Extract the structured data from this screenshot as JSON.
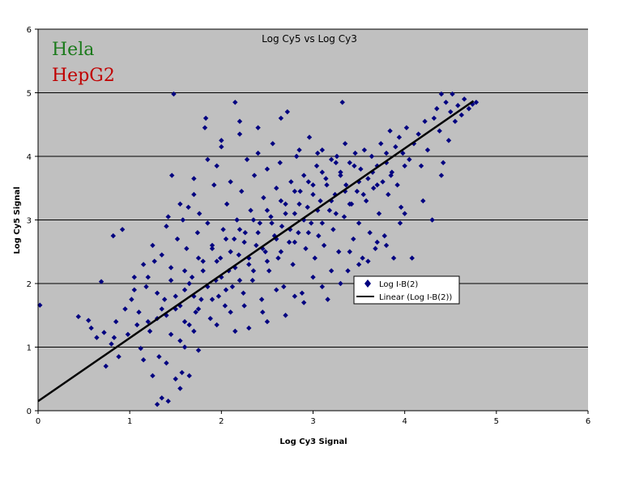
{
  "chart_data": {
    "type": "scatter",
    "title": "Log Cy5 vs Log Cy3",
    "xlabel": "Log Cy3 Signal",
    "ylabel": "Log Cy5 Signal",
    "xlim": [
      0,
      6
    ],
    "ylim": [
      0,
      6
    ],
    "xticks": [
      "0",
      "1",
      "2",
      "3",
      "4",
      "5",
      "6"
    ],
    "yticks": [
      "0",
      "1",
      "2",
      "3",
      "4",
      "5",
      "6"
    ],
    "grid": "horizontal",
    "legend_position": "right",
    "annotations": [
      {
        "text": "Hela",
        "color": "#1a7a1a"
      },
      {
        "text": "HepG2",
        "color": "#c00000"
      }
    ],
    "series": [
      {
        "name": "Log I-B(2)",
        "marker": "diamond",
        "color": "#000080",
        "points": [
          [
            0.02,
            1.66
          ],
          [
            0.44,
            1.48
          ],
          [
            0.55,
            1.42
          ],
          [
            0.58,
            1.3
          ],
          [
            0.64,
            1.15
          ],
          [
            0.69,
            2.03
          ],
          [
            0.72,
            1.23
          ],
          [
            0.74,
            0.7
          ],
          [
            0.8,
            1.05
          ],
          [
            0.83,
            1.15
          ],
          [
            0.85,
            1.4
          ],
          [
            0.88,
            0.85
          ],
          [
            0.82,
            2.75
          ],
          [
            0.92,
            2.85
          ],
          [
            0.95,
            1.6
          ],
          [
            0.98,
            1.2
          ],
          [
            1.02,
            1.75
          ],
          [
            1.05,
            1.9
          ],
          [
            1.08,
            1.35
          ],
          [
            1.1,
            1.55
          ],
          [
            1.12,
            0.98
          ],
          [
            1.15,
            0.8
          ],
          [
            1.18,
            1.95
          ],
          [
            1.2,
            2.1
          ],
          [
            1.22,
            1.25
          ],
          [
            1.25,
            0.55
          ],
          [
            1.27,
            2.35
          ],
          [
            1.3,
            1.45
          ],
          [
            1.32,
            0.85
          ],
          [
            1.35,
            2.45
          ],
          [
            1.38,
            1.75
          ],
          [
            1.4,
            0.75
          ],
          [
            1.42,
            3.05
          ],
          [
            1.45,
            2.25
          ],
          [
            1.46,
            3.7
          ],
          [
            1.48,
            4.98
          ],
          [
            1.5,
            1.6
          ],
          [
            1.52,
            2.7
          ],
          [
            1.55,
            1.1
          ],
          [
            1.57,
            0.6
          ],
          [
            1.58,
            3.0
          ],
          [
            1.6,
            1.9
          ],
          [
            1.62,
            2.55
          ],
          [
            1.64,
            3.2
          ],
          [
            1.65,
            1.35
          ],
          [
            1.68,
            2.1
          ],
          [
            1.7,
            3.4
          ],
          [
            1.72,
            1.55
          ],
          [
            1.74,
            2.8
          ],
          [
            1.76,
            3.1
          ],
          [
            1.78,
            1.75
          ],
          [
            1.8,
            2.35
          ],
          [
            1.82,
            4.45
          ],
          [
            1.83,
            4.6
          ],
          [
            1.85,
            2.95
          ],
          [
            1.88,
            1.45
          ],
          [
            1.9,
            2.6
          ],
          [
            1.92,
            3.55
          ],
          [
            1.94,
            2.05
          ],
          [
            1.95,
            3.85
          ],
          [
            1.97,
            1.8
          ],
          [
            1.99,
            2.4
          ],
          [
            2.0,
            4.15
          ],
          [
            2.02,
            2.85
          ],
          [
            2.04,
            1.65
          ],
          [
            2.06,
            3.25
          ],
          [
            2.08,
            2.2
          ],
          [
            2.1,
            3.6
          ],
          [
            2.12,
            1.95
          ],
          [
            2.14,
            2.7
          ],
          [
            2.15,
            4.85
          ],
          [
            2.17,
            3.0
          ],
          [
            2.19,
            2.45
          ],
          [
            2.2,
            4.55
          ],
          [
            2.22,
            3.45
          ],
          [
            2.24,
            1.85
          ],
          [
            2.26,
            2.8
          ],
          [
            2.28,
            3.95
          ],
          [
            2.3,
            2.3
          ],
          [
            2.32,
            3.15
          ],
          [
            2.34,
            2.05
          ],
          [
            2.36,
            3.7
          ],
          [
            2.38,
            2.6
          ],
          [
            2.4,
            4.05
          ],
          [
            2.42,
            2.95
          ],
          [
            2.44,
            1.75
          ],
          [
            2.46,
            3.35
          ],
          [
            2.48,
            2.5
          ],
          [
            2.5,
            3.8
          ],
          [
            2.52,
            2.2
          ],
          [
            2.54,
            3.05
          ],
          [
            2.56,
            4.2
          ],
          [
            2.58,
            2.75
          ],
          [
            2.6,
            3.5
          ],
          [
            2.62,
            2.4
          ],
          [
            2.64,
            3.9
          ],
          [
            2.66,
            2.9
          ],
          [
            2.68,
            1.95
          ],
          [
            2.7,
            3.25
          ],
          [
            2.72,
            4.7
          ],
          [
            2.74,
            2.65
          ],
          [
            2.76,
            3.6
          ],
          [
            2.78,
            2.3
          ],
          [
            2.8,
            3.1
          ],
          [
            2.82,
            4.0
          ],
          [
            2.84,
            2.8
          ],
          [
            2.86,
            3.45
          ],
          [
            2.88,
            1.85
          ],
          [
            2.9,
            3.7
          ],
          [
            2.92,
            2.55
          ],
          [
            2.94,
            3.2
          ],
          [
            2.96,
            4.3
          ],
          [
            2.98,
            2.95
          ],
          [
            3.0,
            3.55
          ],
          [
            3.02,
            2.4
          ],
          [
            3.04,
            3.85
          ],
          [
            3.06,
            2.75
          ],
          [
            3.08,
            3.3
          ],
          [
            3.1,
            4.1
          ],
          [
            3.12,
            2.6
          ],
          [
            3.14,
            3.65
          ],
          [
            3.16,
            1.75
          ],
          [
            3.18,
            3.15
          ],
          [
            3.2,
            3.95
          ],
          [
            3.22,
            2.85
          ],
          [
            3.24,
            3.4
          ],
          [
            3.26,
            4.0
          ],
          [
            3.28,
            2.5
          ],
          [
            3.3,
            3.75
          ],
          [
            3.32,
            4.85
          ],
          [
            3.34,
            3.05
          ],
          [
            3.36,
            3.55
          ],
          [
            3.38,
            2.2
          ],
          [
            3.4,
            3.9
          ],
          [
            3.42,
            3.25
          ],
          [
            3.44,
            2.7
          ],
          [
            3.46,
            4.05
          ],
          [
            3.48,
            3.45
          ],
          [
            3.5,
            2.95
          ],
          [
            3.52,
            3.8
          ],
          [
            3.54,
            2.4
          ],
          [
            3.56,
            4.1
          ],
          [
            3.58,
            3.3
          ],
          [
            3.6,
            3.65
          ],
          [
            3.62,
            2.8
          ],
          [
            3.64,
            4.0
          ],
          [
            3.66,
            3.5
          ],
          [
            3.68,
            2.55
          ],
          [
            3.7,
            3.85
          ],
          [
            3.72,
            3.1
          ],
          [
            3.74,
            4.2
          ],
          [
            3.76,
            3.6
          ],
          [
            3.78,
            2.75
          ],
          [
            3.8,
            4.05
          ],
          [
            3.82,
            3.4
          ],
          [
            3.84,
            4.4
          ],
          [
            3.86,
            3.75
          ],
          [
            3.88,
            2.4
          ],
          [
            3.9,
            4.15
          ],
          [
            3.92,
            3.55
          ],
          [
            3.94,
            4.3
          ],
          [
            3.96,
            3.2
          ],
          [
            3.98,
            4.05
          ],
          [
            4.0,
            3.85
          ],
          [
            4.02,
            4.45
          ],
          [
            4.05,
            3.95
          ],
          [
            4.08,
            2.4
          ],
          [
            4.1,
            4.2
          ],
          [
            4.15,
            4.35
          ],
          [
            4.18,
            3.85
          ],
          [
            4.22,
            4.55
          ],
          [
            4.25,
            4.1
          ],
          [
            4.3,
            3.0
          ],
          [
            4.32,
            4.6
          ],
          [
            4.35,
            4.75
          ],
          [
            4.38,
            4.4
          ],
          [
            4.42,
            3.9
          ],
          [
            4.45,
            4.85
          ],
          [
            4.48,
            4.25
          ],
          [
            4.5,
            4.7
          ],
          [
            4.52,
            4.98
          ],
          [
            4.55,
            4.55
          ],
          [
            4.58,
            4.8
          ],
          [
            4.62,
            4.65
          ],
          [
            4.65,
            4.9
          ],
          [
            4.7,
            4.75
          ],
          [
            4.74,
            4.82
          ],
          [
            4.78,
            4.85
          ],
          [
            4.4,
            4.98
          ],
          [
            1.6,
            1.0
          ],
          [
            1.7,
            1.25
          ],
          [
            1.75,
            0.95
          ],
          [
            1.5,
            0.5
          ],
          [
            1.35,
            0.2
          ],
          [
            1.3,
            0.1
          ],
          [
            1.42,
            0.15
          ],
          [
            1.55,
            0.35
          ],
          [
            1.65,
            0.55
          ],
          [
            1.95,
            1.35
          ],
          [
            2.1,
            1.55
          ],
          [
            2.25,
            1.65
          ],
          [
            2.45,
            1.55
          ],
          [
            2.6,
            1.9
          ],
          [
            2.8,
            1.8
          ],
          [
            3.0,
            2.1
          ],
          [
            3.2,
            2.2
          ],
          [
            3.4,
            2.5
          ],
          [
            3.6,
            2.35
          ],
          [
            3.8,
            2.6
          ],
          [
            4.0,
            3.1
          ],
          [
            4.2,
            3.3
          ],
          [
            4.4,
            3.7
          ],
          [
            3.95,
            2.95
          ],
          [
            3.7,
            2.65
          ],
          [
            3.5,
            2.3
          ],
          [
            3.3,
            2.0
          ],
          [
            3.1,
            1.95
          ],
          [
            2.9,
            1.7
          ],
          [
            2.7,
            1.5
          ],
          [
            2.5,
            1.4
          ],
          [
            2.3,
            1.3
          ],
          [
            2.15,
            1.25
          ],
          [
            1.25,
            2.6
          ],
          [
            1.15,
            2.3
          ],
          [
            1.05,
            2.1
          ],
          [
            1.4,
            2.9
          ],
          [
            1.55,
            3.25
          ],
          [
            1.7,
            3.65
          ],
          [
            1.85,
            3.95
          ],
          [
            2.0,
            4.25
          ],
          [
            2.2,
            4.35
          ],
          [
            2.4,
            4.45
          ],
          [
            2.65,
            4.6
          ],
          [
            3.35,
            4.2
          ],
          [
            3.05,
            4.05
          ],
          [
            2.85,
            4.1
          ],
          [
            1.3,
            1.85
          ],
          [
            1.45,
            2.05
          ],
          [
            1.6,
            2.2
          ],
          [
            1.75,
            2.4
          ],
          [
            1.9,
            2.55
          ],
          [
            2.05,
            2.7
          ],
          [
            2.2,
            2.85
          ],
          [
            2.35,
            3.0
          ],
          [
            2.5,
            3.15
          ],
          [
            2.65,
            3.3
          ],
          [
            2.8,
            3.45
          ],
          [
            2.95,
            3.6
          ],
          [
            3.1,
            3.75
          ],
          [
            3.25,
            3.9
          ],
          [
            1.4,
            1.5
          ],
          [
            1.55,
            1.65
          ],
          [
            1.7,
            1.8
          ],
          [
            1.85,
            1.95
          ],
          [
            2.0,
            2.1
          ],
          [
            2.15,
            2.25
          ],
          [
            2.3,
            2.4
          ],
          [
            2.45,
            2.55
          ],
          [
            2.6,
            2.7
          ],
          [
            2.75,
            2.85
          ],
          [
            2.9,
            3.0
          ],
          [
            3.05,
            3.15
          ],
          [
            3.2,
            3.3
          ],
          [
            3.35,
            3.45
          ],
          [
            3.5,
            3.6
          ],
          [
            3.65,
            3.75
          ],
          [
            3.8,
            3.9
          ],
          [
            1.2,
            1.4
          ],
          [
            1.35,
            1.6
          ],
          [
            1.5,
            1.8
          ],
          [
            1.65,
            2.0
          ],
          [
            1.8,
            2.2
          ],
          [
            1.95,
            2.35
          ],
          [
            2.1,
            2.5
          ],
          [
            2.25,
            2.65
          ],
          [
            2.4,
            2.8
          ],
          [
            2.55,
            2.95
          ],
          [
            2.7,
            3.1
          ],
          [
            2.85,
            3.25
          ],
          [
            3.0,
            3.4
          ],
          [
            3.15,
            3.55
          ],
          [
            3.3,
            3.7
          ],
          [
            3.45,
            3.85
          ],
          [
            1.45,
            1.2
          ],
          [
            1.6,
            1.4
          ],
          [
            1.75,
            1.6
          ],
          [
            1.9,
            1.75
          ],
          [
            2.05,
            1.9
          ],
          [
            2.2,
            2.05
          ],
          [
            2.35,
            2.2
          ],
          [
            2.5,
            2.35
          ],
          [
            2.65,
            2.5
          ],
          [
            2.8,
            2.65
          ],
          [
            2.95,
            2.8
          ],
          [
            3.1,
            2.95
          ],
          [
            3.25,
            3.1
          ],
          [
            3.4,
            3.25
          ],
          [
            3.55,
            3.4
          ],
          [
            3.7,
            3.55
          ],
          [
            3.85,
            3.7
          ]
        ]
      },
      {
        "name": "Linear (Log I-B(2))",
        "type": "line",
        "color": "#000000",
        "x": [
          0,
          4.75
        ],
        "y": [
          0.15,
          4.87
        ]
      }
    ]
  }
}
